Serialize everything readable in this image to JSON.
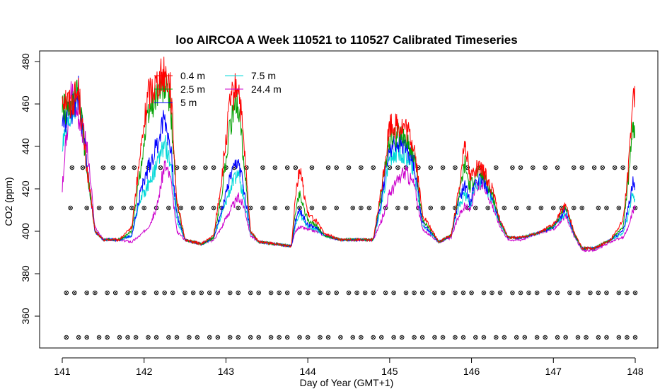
{
  "chart_data": {
    "type": "line",
    "title": "loo AIRCOA A  Week 110521 to 110527  Calibrated Timeseries",
    "xlabel": "Day of Year (GMT+1)",
    "ylabel": "CO2 (ppm)",
    "xlim": [
      141,
      148
    ],
    "ylim": [
      345,
      485
    ],
    "x_ticks": [
      141,
      142,
      143,
      144,
      145,
      146,
      147,
      148
    ],
    "y_ticks": [
      360,
      380,
      400,
      420,
      440,
      460,
      480
    ],
    "grid": false,
    "legend_position": "top-left",
    "legend": [
      {
        "name": "0.4 m",
        "color": "#ff0000"
      },
      {
        "name": "2.5 m",
        "color": "#00a000"
      },
      {
        "name": "5 m",
        "color": "#0000ff"
      },
      {
        "name": "7.5 m",
        "color": "#00d8d8"
      },
      {
        "name": "24.4 m",
        "color": "#cc00cc"
      }
    ],
    "series": [
      {
        "name": "0.4 m",
        "color": "#ff0000",
        "x": [
          141.0,
          141.1,
          141.2,
          141.3,
          141.4,
          141.5,
          141.7,
          141.85,
          141.95,
          142.05,
          142.15,
          142.25,
          142.32,
          142.4,
          142.5,
          142.7,
          142.85,
          142.95,
          143.05,
          143.15,
          143.22,
          143.3,
          143.4,
          143.6,
          143.8,
          143.85,
          143.9,
          144.0,
          144.1,
          144.2,
          144.4,
          144.6,
          144.8,
          144.9,
          145.0,
          145.1,
          145.2,
          145.3,
          145.4,
          145.6,
          145.75,
          145.85,
          145.92,
          145.98,
          146.05,
          146.15,
          146.25,
          146.35,
          146.45,
          146.6,
          146.8,
          147.0,
          147.15,
          147.25,
          147.35,
          147.5,
          147.7,
          147.85,
          147.92,
          147.97,
          148.0
        ],
        "y": [
          465,
          460,
          466,
          430,
          400,
          396,
          396,
          402,
          435,
          465,
          470,
          475,
          470,
          415,
          396,
          394,
          398,
          425,
          460,
          470,
          440,
          400,
          395,
          394,
          393,
          418,
          430,
          408,
          405,
          399,
          396,
          396,
          396,
          420,
          450,
          450,
          448,
          440,
          408,
          395,
          398,
          420,
          445,
          425,
          430,
          428,
          420,
          405,
          397,
          397,
          399,
          403,
          413,
          400,
          392,
          392,
          396,
          405,
          430,
          465,
          460
        ]
      },
      {
        "name": "2.5 m",
        "color": "#00a000",
        "x": [
          141.0,
          141.1,
          141.2,
          141.3,
          141.4,
          141.5,
          141.7,
          141.85,
          141.95,
          142.05,
          142.15,
          142.25,
          142.32,
          142.4,
          142.5,
          142.7,
          142.85,
          142.95,
          143.05,
          143.15,
          143.22,
          143.3,
          143.4,
          143.6,
          143.8,
          143.85,
          143.9,
          144.0,
          144.1,
          144.2,
          144.4,
          144.6,
          144.8,
          144.9,
          145.0,
          145.1,
          145.2,
          145.3,
          145.4,
          145.6,
          145.75,
          145.85,
          145.92,
          145.98,
          146.05,
          146.15,
          146.25,
          146.35,
          146.45,
          146.6,
          146.8,
          147.0,
          147.15,
          147.25,
          147.35,
          147.5,
          147.7,
          147.85,
          147.92,
          147.97,
          148.0
        ],
        "y": [
          458,
          456,
          466,
          430,
          400,
          396,
          396,
          400,
          428,
          455,
          465,
          468,
          462,
          412,
          396,
          394,
          397,
          418,
          450,
          462,
          432,
          400,
          395,
          394,
          393,
          410,
          418,
          405,
          403,
          398,
          396,
          396,
          396,
          418,
          445,
          446,
          444,
          436,
          406,
          395,
          398,
          418,
          432,
          420,
          428,
          426,
          418,
          404,
          397,
          397,
          399,
          402,
          412,
          399,
          392,
          392,
          396,
          402,
          425,
          452,
          448
        ]
      },
      {
        "name": "5 m",
        "color": "#0000ff",
        "x": [
          141.0,
          141.1,
          141.2,
          141.3,
          141.4,
          141.5,
          141.7,
          141.85,
          141.95,
          142.05,
          142.15,
          142.25,
          142.32,
          142.4,
          142.5,
          142.7,
          142.85,
          142.95,
          143.05,
          143.15,
          143.22,
          143.3,
          143.4,
          143.6,
          143.8,
          143.85,
          143.9,
          144.0,
          144.1,
          144.2,
          144.4,
          144.6,
          144.8,
          144.9,
          145.0,
          145.1,
          145.2,
          145.3,
          145.4,
          145.6,
          145.75,
          145.85,
          145.92,
          145.98,
          146.05,
          146.15,
          146.25,
          146.35,
          146.45,
          146.6,
          146.8,
          147.0,
          147.15,
          147.25,
          147.35,
          147.5,
          147.7,
          147.85,
          147.92,
          147.97,
          148.0
        ],
        "y": [
          452,
          455,
          466,
          430,
          400,
          396,
          396,
          398,
          418,
          430,
          440,
          455,
          440,
          408,
          396,
          394,
          397,
          410,
          425,
          433,
          420,
          400,
          395,
          394,
          393,
          405,
          410,
          403,
          402,
          398,
          396,
          396,
          396,
          415,
          440,
          442,
          440,
          432,
          404,
          395,
          398,
          415,
          422,
          414,
          424,
          424,
          416,
          404,
          397,
          397,
          399,
          402,
          410,
          399,
          392,
          392,
          396,
          400,
          412,
          424,
          420
        ]
      },
      {
        "name": "7.5 m",
        "color": "#00d8d8",
        "x": [
          141.0,
          141.1,
          141.2,
          141.3,
          141.4,
          141.5,
          141.7,
          141.85,
          141.95,
          142.05,
          142.15,
          142.25,
          142.32,
          142.4,
          142.5,
          142.7,
          142.85,
          142.95,
          143.05,
          143.15,
          143.22,
          143.3,
          143.4,
          143.6,
          143.8,
          143.85,
          143.9,
          144.0,
          144.1,
          144.2,
          144.4,
          144.6,
          144.8,
          144.9,
          145.0,
          145.1,
          145.2,
          145.3,
          145.4,
          145.6,
          145.75,
          145.85,
          145.92,
          145.98,
          146.05,
          146.15,
          146.25,
          146.35,
          146.45,
          146.6,
          146.8,
          147.0,
          147.15,
          147.25,
          147.35,
          147.5,
          147.7,
          147.85,
          147.92,
          147.97,
          148.0
        ],
        "y": [
          440,
          452,
          465,
          430,
          400,
          396,
          396,
          398,
          415,
          422,
          430,
          442,
          432,
          405,
          396,
          394,
          397,
          408,
          420,
          428,
          415,
          399,
          395,
          394,
          393,
          403,
          408,
          402,
          401,
          398,
          396,
          396,
          396,
          412,
          435,
          437,
          436,
          428,
          403,
          395,
          398,
          412,
          418,
          412,
          422,
          423,
          415,
          403,
          397,
          397,
          399,
          402,
          409,
          399,
          392,
          392,
          396,
          399,
          408,
          418,
          415
        ]
      },
      {
        "name": "24.4 m",
        "color": "#cc00cc",
        "x": [
          141.0,
          141.1,
          141.2,
          141.3,
          141.4,
          141.5,
          141.7,
          141.85,
          141.95,
          142.05,
          142.15,
          142.25,
          142.32,
          142.4,
          142.5,
          142.7,
          142.85,
          142.95,
          143.05,
          143.15,
          143.22,
          143.3,
          143.4,
          143.6,
          143.8,
          143.85,
          143.9,
          144.0,
          144.1,
          144.2,
          144.4,
          144.6,
          144.8,
          144.9,
          145.0,
          145.1,
          145.2,
          145.3,
          145.4,
          145.6,
          145.75,
          145.85,
          145.92,
          145.98,
          146.05,
          146.15,
          146.25,
          146.35,
          146.45,
          146.6,
          146.8,
          147.0,
          147.15,
          147.25,
          147.35,
          147.5,
          147.7,
          147.85,
          147.92,
          147.97,
          148.0
        ],
        "y": [
          420,
          468,
          455,
          440,
          402,
          396,
          396,
          395,
          398,
          402,
          410,
          432,
          425,
          400,
          396,
          394,
          396,
          402,
          410,
          416,
          412,
          398,
          395,
          394,
          393,
          400,
          402,
          401,
          400,
          398,
          396,
          396,
          396,
          405,
          418,
          424,
          428,
          422,
          401,
          395,
          397,
          408,
          412,
          410,
          420,
          422,
          413,
          402,
          396,
          396,
          399,
          401,
          407,
          398,
          391,
          391,
          395,
          397,
          402,
          410,
          412
        ]
      }
    ],
    "reference_marker_rows": [
      {
        "y": 430,
        "x": [
          141.12,
          141.25,
          141.5,
          141.62,
          141.75,
          141.88,
          142.05,
          142.2,
          142.4,
          142.5,
          142.6,
          142.75,
          142.85,
          143.0,
          143.1,
          143.25,
          143.45,
          143.6,
          143.75,
          143.85,
          144.05,
          144.25,
          144.35,
          144.5,
          144.65,
          144.8,
          145.0,
          145.1,
          145.2,
          145.35,
          145.5,
          145.65,
          145.8,
          145.95,
          146.1,
          146.3,
          146.5,
          146.6,
          146.75,
          146.9,
          147.05,
          147.25,
          147.35,
          147.5,
          147.6,
          147.75,
          147.85,
          148.0
        ]
      },
      {
        "y": 411,
        "x": [
          141.1,
          141.3,
          141.45,
          141.6,
          141.75,
          141.85,
          142.0,
          142.15,
          142.3,
          142.45,
          142.6,
          142.7,
          142.85,
          142.95,
          143.15,
          143.3,
          143.45,
          143.6,
          143.75,
          143.9,
          144.05,
          144.2,
          144.35,
          144.55,
          144.65,
          144.75,
          144.95,
          145.1,
          145.2,
          145.35,
          145.5,
          145.65,
          145.8,
          145.95,
          146.05,
          146.2,
          146.4,
          146.55,
          146.7,
          146.85,
          147.0,
          147.1,
          147.25,
          147.35,
          147.55,
          147.65,
          147.8,
          148.0
        ]
      },
      {
        "y": 371,
        "x": [
          141.05,
          141.15,
          141.3,
          141.4,
          141.55,
          141.65,
          141.8,
          141.9,
          142.0,
          142.15,
          142.25,
          142.35,
          142.5,
          142.6,
          142.7,
          142.8,
          142.9,
          143.05,
          143.15,
          143.3,
          143.4,
          143.55,
          143.65,
          143.75,
          143.9,
          144.0,
          144.15,
          144.25,
          144.35,
          144.5,
          144.6,
          144.7,
          144.8,
          144.95,
          145.05,
          145.2,
          145.3,
          145.4,
          145.55,
          145.65,
          145.8,
          145.9,
          146.0,
          146.15,
          146.25,
          146.35,
          146.5,
          146.6,
          146.7,
          146.8,
          146.95,
          147.05,
          147.2,
          147.3,
          147.45,
          147.55,
          147.65,
          147.8,
          147.9,
          148.0
        ]
      },
      {
        "y": 350,
        "x": [
          141.05,
          141.2,
          141.3,
          141.45,
          141.55,
          141.7,
          141.8,
          141.9,
          142.05,
          142.15,
          142.3,
          142.4,
          142.55,
          142.65,
          142.8,
          142.9,
          143.05,
          143.15,
          143.3,
          143.4,
          143.55,
          143.65,
          143.75,
          143.9,
          144.0,
          144.15,
          144.25,
          144.4,
          144.55,
          144.65,
          144.8,
          144.9,
          145.05,
          145.15,
          145.3,
          145.4,
          145.55,
          145.65,
          145.8,
          145.9,
          146.05,
          146.15,
          146.3,
          146.4,
          146.55,
          146.65,
          146.8,
          146.9,
          147.05,
          147.15,
          147.3,
          147.4,
          147.55,
          147.65,
          147.8,
          147.9,
          148.0
        ]
      }
    ]
  }
}
